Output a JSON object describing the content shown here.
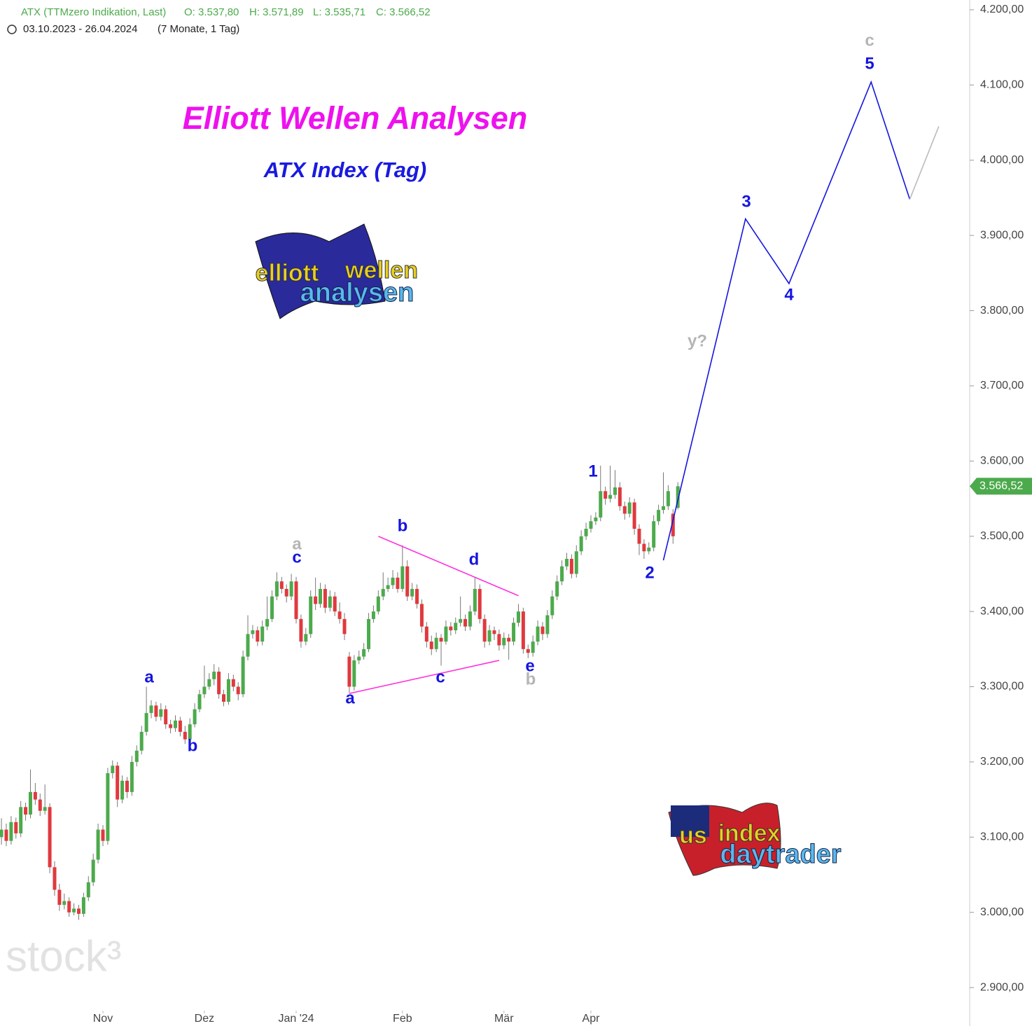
{
  "chart_data": {
    "type": "candlestick",
    "header": {
      "symbol": "ATX (TTMzero Indikation, Last)",
      "open": "O: 3.537,80",
      "high": "H: 3.571,89",
      "low": "L: 3.535,71",
      "close": "C: 3.566,52",
      "range": "03.10.2023 - 26.04.2024",
      "period": "(7 Monate, 1 Tag)"
    },
    "title": "Elliott Wellen Analysen",
    "subtitle": "ATX Index (Tag)",
    "logo_top": [
      "elliott",
      "wellen",
      "analysen"
    ],
    "logo_bottom": [
      "us",
      "index",
      "daytrader"
    ],
    "watermark": "stock³",
    "up_color": "#4caa4c",
    "down_color": "#e0393e",
    "candles": [
      [
        3100,
        3125,
        3090,
        3110
      ],
      [
        3110,
        3118,
        3088,
        3095
      ],
      [
        3095,
        3128,
        3090,
        3120
      ],
      [
        3120,
        3126,
        3098,
        3105
      ],
      [
        3105,
        3148,
        3100,
        3140
      ],
      [
        3140,
        3146,
        3122,
        3130
      ],
      [
        3130,
        3190,
        3125,
        3160
      ],
      [
        3160,
        3172,
        3143,
        3150
      ],
      [
        3150,
        3158,
        3128,
        3135
      ],
      [
        3135,
        3170,
        3130,
        3140
      ],
      [
        3140,
        3145,
        3052,
        3060
      ],
      [
        3060,
        3068,
        3022,
        3030
      ],
      [
        3030,
        3038,
        3002,
        3010
      ],
      [
        3010,
        3025,
        3004,
        3015
      ],
      [
        3015,
        3020,
        2994,
        3000
      ],
      [
        3000,
        3012,
        2996,
        3005
      ],
      [
        3005,
        3010,
        2990,
        2998
      ],
      [
        2998,
        3026,
        2994,
        3020
      ],
      [
        3020,
        3048,
        3015,
        3040
      ],
      [
        3040,
        3078,
        3035,
        3070
      ],
      [
        3070,
        3118,
        3065,
        3110
      ],
      [
        3110,
        3116,
        3088,
        3095
      ],
      [
        3095,
        3192,
        3090,
        3185
      ],
      [
        3185,
        3202,
        3178,
        3195
      ],
      [
        3195,
        3200,
        3140,
        3150
      ],
      [
        3150,
        3182,
        3145,
        3175
      ],
      [
        3175,
        3180,
        3152,
        3160
      ],
      [
        3160,
        3208,
        3155,
        3200
      ],
      [
        3200,
        3222,
        3194,
        3215
      ],
      [
        3215,
        3248,
        3210,
        3240
      ],
      [
        3240,
        3300,
        3235,
        3265
      ],
      [
        3265,
        3282,
        3258,
        3275
      ],
      [
        3275,
        3280,
        3254,
        3260
      ],
      [
        3260,
        3278,
        3255,
        3270
      ],
      [
        3270,
        3275,
        3244,
        3250
      ],
      [
        3250,
        3256,
        3238,
        3245
      ],
      [
        3245,
        3262,
        3240,
        3255
      ],
      [
        3255,
        3260,
        3234,
        3240
      ],
      [
        3240,
        3248,
        3224,
        3230
      ],
      [
        3230,
        3258,
        3226,
        3250
      ],
      [
        3250,
        3278,
        3246,
        3270
      ],
      [
        3270,
        3296,
        3266,
        3290
      ],
      [
        3290,
        3328,
        3285,
        3300
      ],
      [
        3300,
        3318,
        3296,
        3310
      ],
      [
        3310,
        3330,
        3302,
        3320
      ],
      [
        3320,
        3326,
        3284,
        3290
      ],
      [
        3290,
        3296,
        3274,
        3280
      ],
      [
        3280,
        3318,
        3276,
        3310
      ],
      [
        3310,
        3316,
        3294,
        3300
      ],
      [
        3300,
        3306,
        3282,
        3290
      ],
      [
        3290,
        3348,
        3286,
        3340
      ],
      [
        3340,
        3395,
        3335,
        3370
      ],
      [
        3370,
        3382,
        3364,
        3375
      ],
      [
        3375,
        3380,
        3354,
        3360
      ],
      [
        3360,
        3388,
        3355,
        3380
      ],
      [
        3380,
        3420,
        3375,
        3390
      ],
      [
        3390,
        3428,
        3386,
        3420
      ],
      [
        3420,
        3452,
        3415,
        3440
      ],
      [
        3440,
        3446,
        3424,
        3430
      ],
      [
        3430,
        3436,
        3412,
        3420
      ],
      [
        3420,
        3450,
        3415,
        3440
      ],
      [
        3440,
        3446,
        3384,
        3390
      ],
      [
        3390,
        3396,
        3352,
        3360
      ],
      [
        3360,
        3378,
        3355,
        3370
      ],
      [
        3370,
        3428,
        3365,
        3420
      ],
      [
        3420,
        3445,
        3402,
        3410
      ],
      [
        3410,
        3438,
        3405,
        3430
      ],
      [
        3430,
        3436,
        3398,
        3405
      ],
      [
        3405,
        3428,
        3400,
        3420
      ],
      [
        3420,
        3426,
        3394,
        3400
      ],
      [
        3400,
        3412,
        3384,
        3390
      ],
      [
        3390,
        3398,
        3362,
        3370
      ],
      [
        3340,
        3346,
        3292,
        3300
      ],
      [
        3300,
        3342,
        3295,
        3335
      ],
      [
        3335,
        3348,
        3330,
        3340
      ],
      [
        3340,
        3358,
        3336,
        3350
      ],
      [
        3350,
        3398,
        3346,
        3390
      ],
      [
        3390,
        3408,
        3385,
        3400
      ],
      [
        3400,
        3428,
        3396,
        3420
      ],
      [
        3420,
        3452,
        3415,
        3430
      ],
      [
        3430,
        3445,
        3426,
        3435
      ],
      [
        3435,
        3455,
        3430,
        3445
      ],
      [
        3445,
        3452,
        3425,
        3430
      ],
      [
        3430,
        3488,
        3426,
        3460
      ],
      [
        3460,
        3468,
        3414,
        3420
      ],
      [
        3420,
        3438,
        3415,
        3430
      ],
      [
        3430,
        3436,
        3404,
        3410
      ],
      [
        3410,
        3416,
        3372,
        3380
      ],
      [
        3380,
        3386,
        3352,
        3360
      ],
      [
        3360,
        3368,
        3342,
        3350
      ],
      [
        3350,
        3372,
        3346,
        3365
      ],
      [
        3365,
        3370,
        3328,
        3360
      ],
      [
        3360,
        3388,
        3356,
        3380
      ],
      [
        3380,
        3386,
        3368,
        3375
      ],
      [
        3375,
        3392,
        3370,
        3385
      ],
      [
        3385,
        3420,
        3380,
        3390
      ],
      [
        3390,
        3396,
        3374,
        3380
      ],
      [
        3380,
        3408,
        3375,
        3400
      ],
      [
        3400,
        3445,
        3395,
        3430
      ],
      [
        3430,
        3436,
        3384,
        3390
      ],
      [
        3390,
        3396,
        3352,
        3360
      ],
      [
        3360,
        3382,
        3355,
        3375
      ],
      [
        3375,
        3380,
        3362,
        3370
      ],
      [
        3370,
        3376,
        3348,
        3355
      ],
      [
        3355,
        3372,
        3350,
        3365
      ],
      [
        3365,
        3370,
        3336,
        3360
      ],
      [
        3360,
        3392,
        3355,
        3385
      ],
      [
        3385,
        3410,
        3380,
        3400
      ],
      [
        3400,
        3405,
        3344,
        3350
      ],
      [
        3350,
        3356,
        3338,
        3345
      ],
      [
        3345,
        3368,
        3340,
        3360
      ],
      [
        3360,
        3388,
        3355,
        3380
      ],
      [
        3380,
        3386,
        3362,
        3370
      ],
      [
        3370,
        3402,
        3365,
        3395
      ],
      [
        3395,
        3428,
        3390,
        3420
      ],
      [
        3420,
        3448,
        3415,
        3440
      ],
      [
        3440,
        3468,
        3435,
        3460
      ],
      [
        3460,
        3478,
        3455,
        3470
      ],
      [
        3470,
        3476,
        3444,
        3450
      ],
      [
        3450,
        3488,
        3445,
        3480
      ],
      [
        3480,
        3508,
        3475,
        3500
      ],
      [
        3500,
        3518,
        3495,
        3510
      ],
      [
        3510,
        3528,
        3505,
        3520
      ],
      [
        3520,
        3532,
        3515,
        3525
      ],
      [
        3525,
        3594,
        3520,
        3560
      ],
      [
        3560,
        3566,
        3542,
        3550
      ],
      [
        3550,
        3594,
        3545,
        3555
      ],
      [
        3555,
        3588,
        3550,
        3565
      ],
      [
        3565,
        3572,
        3534,
        3540
      ],
      [
        3540,
        3546,
        3522,
        3530
      ],
      [
        3530,
        3552,
        3525,
        3545
      ],
      [
        3545,
        3550,
        3502,
        3510
      ],
      [
        3510,
        3516,
        3475,
        3490
      ],
      [
        3490,
        3496,
        3470,
        3480
      ],
      [
        3480,
        3492,
        3476,
        3485
      ],
      [
        3485,
        3528,
        3480,
        3520
      ],
      [
        3520,
        3542,
        3515,
        3535
      ],
      [
        3535,
        3585,
        3530,
        3540
      ],
      [
        3540,
        3568,
        3535,
        3560
      ],
      [
        3530,
        3536,
        3490,
        3500
      ],
      [
        3537.8,
        3571.89,
        3535.71,
        3566.52
      ]
    ],
    "last_label": "3.566,52",
    "lines": [
      {
        "color": "#1515e0",
        "x": [
          137,
          154,
          163,
          180,
          188
        ],
        "values": [
          3468,
          3922,
          3836,
          4104,
          3948
        ]
      },
      {
        "color": "#bbbbbb",
        "x": [
          188,
          194
        ],
        "values": [
          3948,
          4045
        ]
      },
      {
        "color": "#ff33dd",
        "x": [
          72,
          103
        ],
        "values": [
          3291,
          3335
        ]
      },
      {
        "color": "#ff33dd",
        "x": [
          78,
          107
        ],
        "values": [
          3500,
          3421
        ]
      }
    ],
    "wave_labels": [
      "a",
      "b",
      "a",
      "c",
      "b",
      "a",
      "c",
      "d",
      "e",
      "b",
      "1",
      "2",
      "y?",
      "3",
      "4",
      "5",
      "c"
    ],
    "xlim": [
      -0.3,
      200.4
    ],
    "ylim": [
      2888,
      4213
    ],
    "xticks": [
      {
        "value": 21,
        "label": "Nov"
      },
      {
        "value": 42,
        "label": "Dez"
      },
      {
        "value": 61,
        "label": "Jan '24"
      },
      {
        "value": 83,
        "label": "Feb"
      },
      {
        "value": 104,
        "label": "Mär"
      },
      {
        "value": 122,
        "label": "Apr"
      }
    ],
    "yticks": [
      {
        "value": 2900,
        "label": "2.900,00"
      },
      {
        "value": 3000,
        "label": "3.000,00"
      },
      {
        "value": 3100,
        "label": "3.100,00"
      },
      {
        "value": 3200,
        "label": "3.200,00"
      },
      {
        "value": 3300,
        "label": "3.300,00"
      },
      {
        "value": 3400,
        "label": "3.400,00"
      },
      {
        "value": 3500,
        "label": "3.500,00"
      },
      {
        "value": 3600,
        "label": "3.600,00"
      },
      {
        "value": 3700,
        "label": "3.700,00"
      },
      {
        "value": 3800,
        "label": "3.800,00"
      },
      {
        "value": 3900,
        "label": "3.900,00"
      },
      {
        "value": 4000,
        "label": "4.000,00"
      },
      {
        "value": 4100,
        "label": "4.100,00"
      },
      {
        "value": 4200,
        "label": "4.200,00"
      }
    ]
  }
}
